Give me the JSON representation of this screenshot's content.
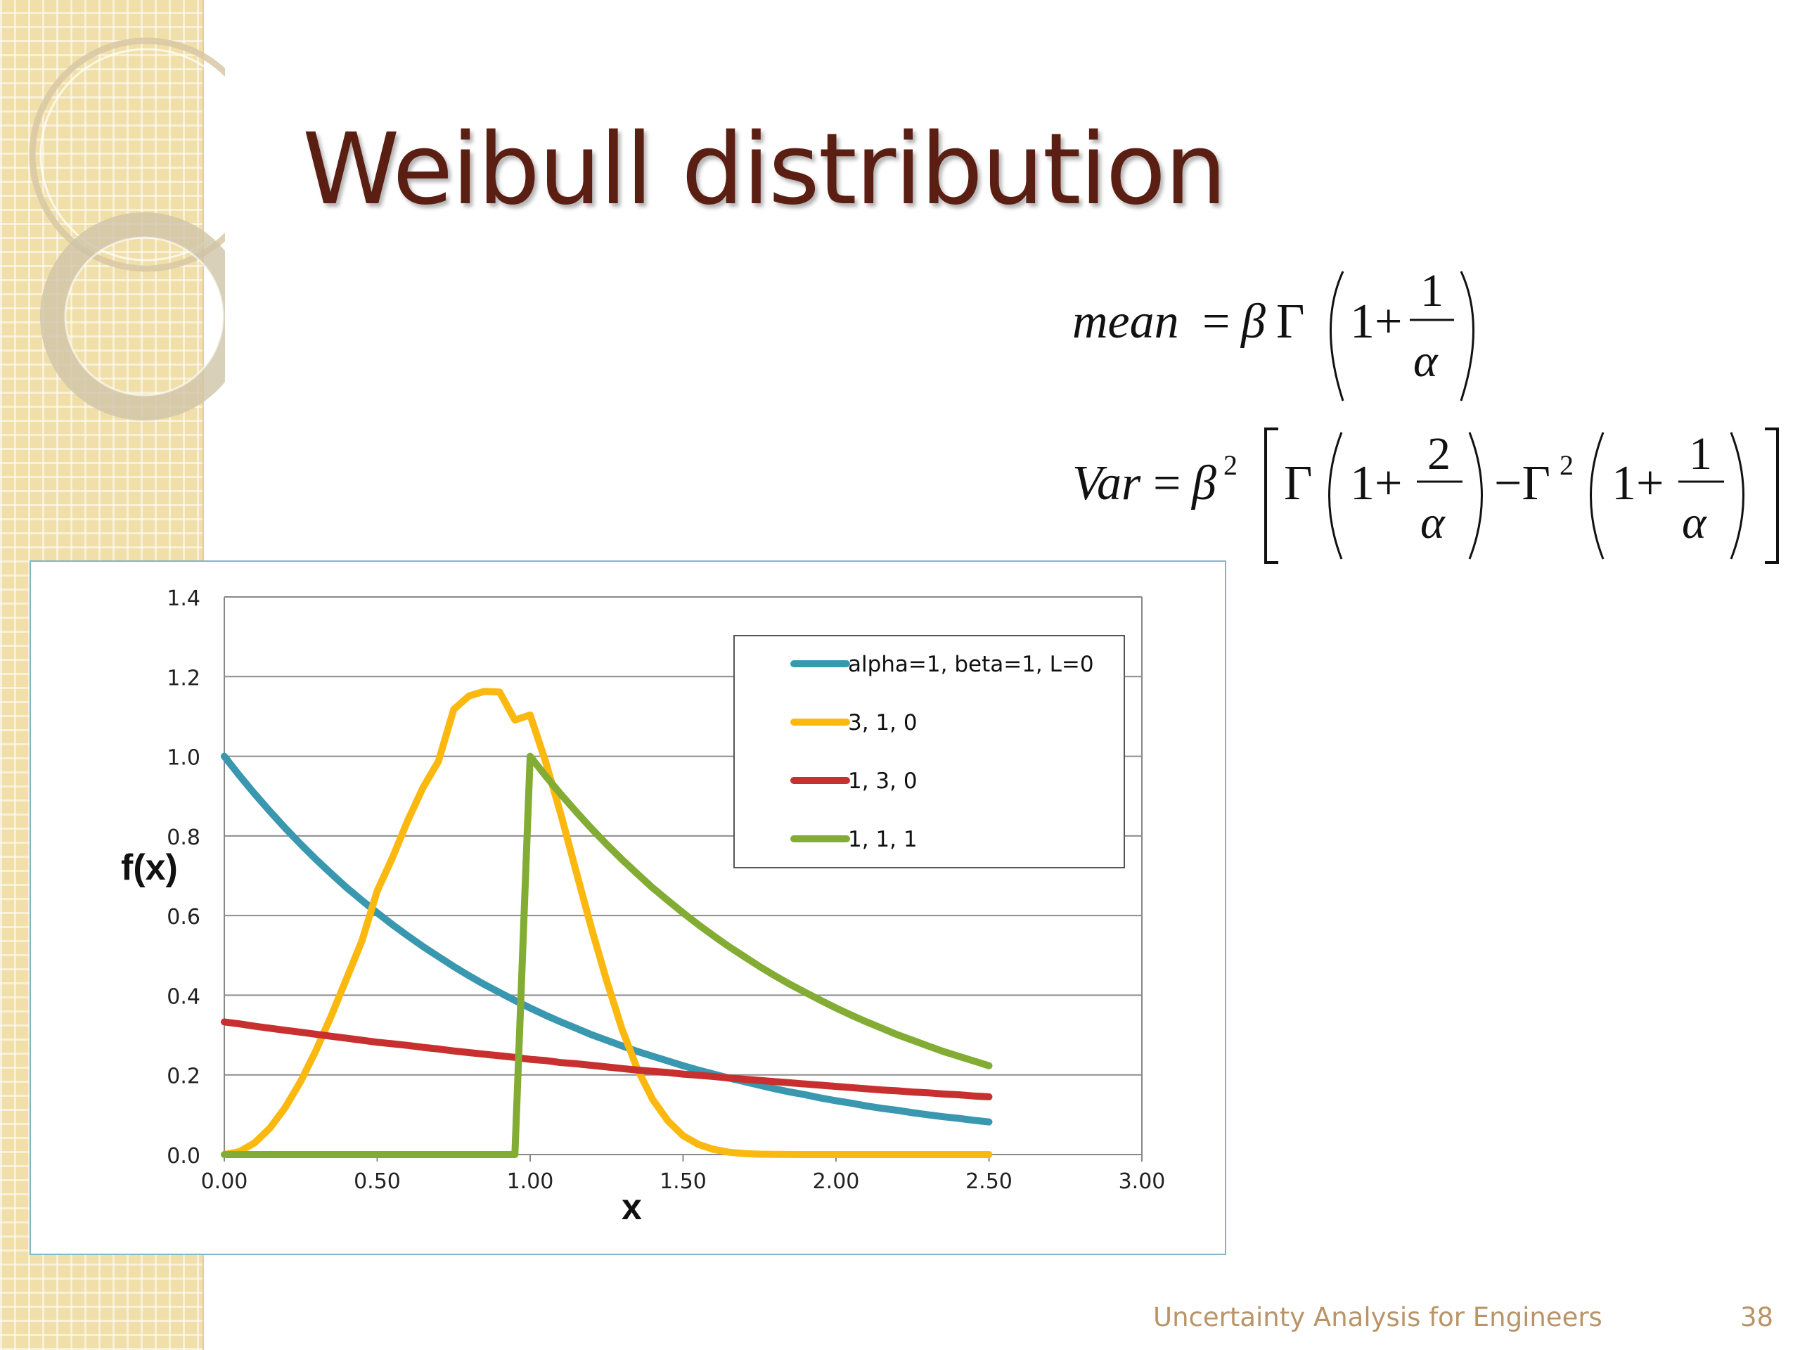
{
  "slide": {
    "title": "Weibull distribution",
    "footer": "Uncertainty Analysis for Engineers",
    "page_number": "38"
  },
  "formulas": {
    "mean_lhs": "mean",
    "var_lhs": "Var"
  },
  "colors": {
    "title": "#5a1f12",
    "footer": "#b99468",
    "series": [
      "#3a97b0",
      "#fbb80f",
      "#c8302f",
      "#82ac33"
    ]
  },
  "chart_data": {
    "type": "line",
    "xlabel": "x",
    "ylabel": "f(x)",
    "xlim": [
      0,
      3
    ],
    "ylim": [
      0,
      1.4
    ],
    "x_ticks": [
      "0.00",
      "0.50",
      "1.00",
      "1.50",
      "2.00",
      "2.50",
      "3.00"
    ],
    "y_ticks": [
      "0.0",
      "0.2",
      "0.4",
      "0.6",
      "0.8",
      "1.0",
      "1.2",
      "1.4"
    ],
    "grid": "horizontal",
    "legend_position": "top-right",
    "x": [
      0,
      0.05,
      0.1,
      0.15,
      0.2,
      0.25,
      0.3,
      0.35,
      0.4,
      0.45,
      0.5,
      0.55,
      0.6,
      0.65,
      0.7,
      0.75,
      0.8,
      0.85,
      0.9,
      0.95,
      1.0,
      1.05,
      1.1,
      1.15,
      1.2,
      1.25,
      1.3,
      1.35,
      1.4,
      1.45,
      1.5,
      1.55,
      1.6,
      1.65,
      1.7,
      1.75,
      1.8,
      1.85,
      1.9,
      1.95,
      2.0,
      2.05,
      2.1,
      2.15,
      2.2,
      2.25,
      2.3,
      2.35,
      2.4,
      2.45,
      2.5
    ],
    "series": [
      {
        "name": "alpha=1, beta=1, L=0",
        "color": "#3a97b0",
        "values": [
          1.0,
          0.951,
          0.905,
          0.861,
          0.819,
          0.779,
          0.741,
          0.705,
          0.67,
          0.638,
          0.607,
          0.577,
          0.549,
          0.522,
          0.497,
          0.472,
          0.449,
          0.427,
          0.407,
          0.387,
          0.368,
          0.35,
          0.333,
          0.317,
          0.301,
          0.287,
          0.273,
          0.259,
          0.247,
          0.235,
          0.223,
          0.212,
          0.202,
          0.192,
          0.183,
          0.174,
          0.165,
          0.157,
          0.15,
          0.142,
          0.135,
          0.129,
          0.122,
          0.116,
          0.111,
          0.105,
          0.1,
          0.095,
          0.091,
          0.086,
          0.082
        ]
      },
      {
        "name": "3, 1, 0",
        "color": "#fbb80f",
        "values": [
          0.0,
          0.0075,
          0.0299,
          0.0672,
          0.119,
          0.1843,
          0.2617,
          0.3488,
          0.4422,
          0.5369,
          0.6619,
          0.7461,
          0.8391,
          0.9219,
          0.987,
          1.1176,
          1.1515,
          1.1629,
          1.1612,
          1.0911,
          1.1036,
          0.9875,
          0.8552,
          0.7114,
          0.5692,
          0.4366,
          0.3154,
          0.2155,
          0.139,
          0.0849,
          0.0473,
          0.0255,
          0.0129,
          0.0058,
          0.0024,
          0.0009,
          0.0003,
          0.0001,
          0.0,
          0.0,
          0.0,
          0.0,
          0.0,
          0.0,
          0.0,
          0.0,
          0.0,
          0.0,
          0.0,
          0.0,
          0.0
        ]
      },
      {
        "name": "1, 3, 0",
        "color": "#c8302f",
        "values": [
          0.333,
          0.328,
          0.322,
          0.317,
          0.312,
          0.307,
          0.302,
          0.297,
          0.292,
          0.287,
          0.282,
          0.278,
          0.274,
          0.269,
          0.265,
          0.26,
          0.256,
          0.252,
          0.248,
          0.244,
          0.239,
          0.236,
          0.231,
          0.228,
          0.224,
          0.22,
          0.216,
          0.212,
          0.209,
          0.206,
          0.202,
          0.199,
          0.196,
          0.192,
          0.189,
          0.186,
          0.183,
          0.18,
          0.177,
          0.174,
          0.171,
          0.168,
          0.165,
          0.162,
          0.16,
          0.157,
          0.155,
          0.152,
          0.15,
          0.147,
          0.145
        ]
      },
      {
        "name": "1, 1, 1",
        "color": "#82ac33",
        "values": [
          0,
          0,
          0,
          0,
          0,
          0,
          0,
          0,
          0,
          0,
          0,
          0,
          0,
          0,
          0,
          0,
          0,
          0,
          0,
          0,
          1.0,
          0.951,
          0.905,
          0.861,
          0.819,
          0.779,
          0.741,
          0.705,
          0.67,
          0.638,
          0.607,
          0.577,
          0.549,
          0.522,
          0.497,
          0.472,
          0.449,
          0.427,
          0.407,
          0.387,
          0.368,
          0.35,
          0.333,
          0.317,
          0.301,
          0.287,
          0.273,
          0.259,
          0.247,
          0.235,
          0.223
        ]
      }
    ]
  }
}
